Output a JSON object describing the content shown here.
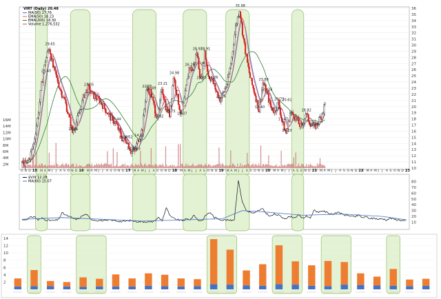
{
  "chart_data": [
    {
      "type": "candlestick",
      "title": "VIRT (Daily) 20.48",
      "legend": [
        {
          "label": "MA(50) 17.76",
          "color": "#4472c4"
        },
        {
          "label": "EMA(50) 18.23",
          "color": "#e06666"
        },
        {
          "label": "EMA(200) 18.30",
          "color": "#2e7d32"
        },
        {
          "label": "Volume 1,276,532",
          "color": "#c25555"
        }
      ],
      "ylim": [
        10,
        36
      ],
      "yticks": [
        10,
        11,
        12,
        13,
        14,
        15,
        16,
        17,
        18,
        19,
        20,
        21,
        22,
        23,
        24,
        25,
        26,
        27,
        28,
        29,
        30,
        31,
        32,
        33,
        34,
        35,
        36
      ],
      "volume_ticks": [
        "16M",
        "14M",
        "12M",
        "10M",
        "8M",
        "6M",
        "4M",
        "2M"
      ],
      "x_month_labels": [
        "O",
        "N",
        "D",
        "15",
        "F",
        "M",
        "A",
        "M",
        "J",
        "J",
        "A",
        "S",
        "O",
        "N",
        "D",
        "16",
        "F",
        "M",
        "A",
        "M",
        "J",
        "J",
        "A",
        "S",
        "O",
        "N",
        "D",
        "17",
        "F",
        "M",
        "A",
        "M",
        "J",
        "J",
        "A",
        "S",
        "O",
        "N",
        "D",
        "18",
        "F",
        "M",
        "A",
        "M",
        "J",
        "J",
        "A",
        "S",
        "O",
        "N",
        "D",
        "19",
        "F",
        "M",
        "A",
        "M",
        "J",
        "J",
        "A",
        "S",
        "O",
        "N",
        "D",
        "20",
        "F",
        "M",
        "A",
        "M",
        "J",
        "J",
        "A",
        "S",
        "O",
        "N",
        "D",
        "21",
        "F",
        "M",
        "A",
        "M",
        "J",
        "J",
        "A",
        "S",
        "O",
        "N",
        "D",
        "22",
        "F",
        "M",
        "A",
        "M",
        "J",
        "J",
        "A",
        "S",
        "O",
        "N",
        "D",
        "23"
      ],
      "shaded_month_ranges": [
        [
          4,
          6
        ],
        [
          13,
          17
        ],
        [
          29,
          34
        ],
        [
          42,
          47
        ],
        [
          53,
          58
        ],
        [
          70,
          72
        ]
      ],
      "price_path": [
        [
          0,
          11.0
        ],
        [
          1,
          10.6
        ],
        [
          2,
          11.8
        ],
        [
          3,
          14.0
        ],
        [
          4,
          18.0
        ],
        [
          5,
          23.5
        ],
        [
          6,
          27.5
        ],
        [
          7,
          29.65
        ],
        [
          8,
          26.4
        ],
        [
          9,
          24.5
        ],
        [
          10,
          22.5
        ],
        [
          11,
          21.0
        ],
        [
          12,
          18.5
        ],
        [
          13,
          15.81
        ],
        [
          14,
          17.5
        ],
        [
          15,
          19.5
        ],
        [
          16,
          22.0
        ],
        [
          17,
          23.05
        ],
        [
          18,
          22.0
        ],
        [
          19,
          21.5
        ],
        [
          20,
          21.0
        ],
        [
          21,
          20.0
        ],
        [
          22,
          19.0
        ],
        [
          23,
          18.0
        ],
        [
          24,
          17.44
        ],
        [
          25,
          16.0
        ],
        [
          26,
          14.47
        ],
        [
          27,
          14.52
        ],
        [
          28,
          12.76
        ],
        [
          29,
          12.63
        ],
        [
          30,
          14.81
        ],
        [
          31,
          16.5
        ],
        [
          32,
          22.75
        ],
        [
          33,
          22.49
        ],
        [
          34,
          20.0
        ],
        [
          35,
          17.92
        ],
        [
          36,
          23.21
        ],
        [
          37,
          20.0
        ],
        [
          38,
          18.73
        ],
        [
          39,
          24.98
        ],
        [
          40,
          21.5
        ],
        [
          41,
          18.37
        ],
        [
          42,
          22.0
        ],
        [
          43,
          26.28
        ],
        [
          44,
          26.0
        ],
        [
          45,
          28.91
        ],
        [
          46,
          24.2
        ],
        [
          47,
          28.91
        ],
        [
          48,
          25.0
        ],
        [
          49,
          24.26
        ],
        [
          50,
          22.5
        ],
        [
          51,
          21.16
        ],
        [
          52,
          22.5
        ],
        [
          53,
          24.2
        ],
        [
          54,
          28.0
        ],
        [
          55,
          33.0
        ],
        [
          56,
          35.88
        ],
        [
          57,
          31.0
        ],
        [
          58,
          27.0
        ],
        [
          59,
          24.0
        ],
        [
          60,
          22.0
        ],
        [
          61,
          19.4
        ],
        [
          62,
          23.88
        ],
        [
          63,
          22.26
        ],
        [
          64,
          20.0
        ],
        [
          65,
          19.16
        ],
        [
          66,
          20.73
        ],
        [
          67,
          17.47
        ],
        [
          68,
          15.63
        ],
        [
          69,
          19.0
        ],
        [
          70,
          18.61
        ],
        [
          71,
          17.5
        ],
        [
          72,
          16.5
        ],
        [
          73,
          18.92
        ],
        [
          74,
          17.5
        ],
        [
          75,
          16.63
        ],
        [
          76,
          17.2
        ],
        [
          77,
          18.5
        ],
        [
          78,
          20.48
        ]
      ],
      "annotations": [
        {
          "text": "29.65",
          "month": 7,
          "value": 29.65
        },
        {
          "text": "26.40",
          "month": 6,
          "value": 26.4
        },
        {
          "text": "15.81",
          "month": 13,
          "value": 15.81
        },
        {
          "text": "23.05",
          "month": 17,
          "value": 23.05
        },
        {
          "text": "17.44",
          "month": 24,
          "value": 17.44
        },
        {
          "text": "14.47",
          "month": 26,
          "value": 14.47
        },
        {
          "text": "14.52",
          "month": 27,
          "value": 14.52
        },
        {
          "text": "12.76",
          "month": 28,
          "value": 12.76
        },
        {
          "text": "12.63",
          "month": 29,
          "value": 12.63
        },
        {
          "text": "14.81",
          "month": 30,
          "value": 14.81
        },
        {
          "text": "22.75",
          "month": 32,
          "value": 22.75
        },
        {
          "text": "22.49",
          "month": 33,
          "value": 22.49
        },
        {
          "text": "17.92",
          "month": 35,
          "value": 17.92
        },
        {
          "text": "23.21",
          "month": 36,
          "value": 23.21
        },
        {
          "text": "18.73",
          "month": 38,
          "value": 18.73
        },
        {
          "text": "24.98",
          "month": 39,
          "value": 24.98
        },
        {
          "text": "18.37",
          "month": 41,
          "value": 18.37
        },
        {
          "text": "26.28",
          "month": 43,
          "value": 26.28
        },
        {
          "text": "28.91",
          "month": 45,
          "value": 28.91
        },
        {
          "text": "28.91",
          "month": 47,
          "value": 28.91
        },
        {
          "text": "24.20",
          "month": 46,
          "value": 24.2
        },
        {
          "text": "24.26",
          "month": 49,
          "value": 24.26
        },
        {
          "text": "21.16",
          "month": 51,
          "value": 21.16
        },
        {
          "text": "35.88",
          "month": 56,
          "value": 35.88
        },
        {
          "text": "19.40",
          "month": 61,
          "value": 19.4
        },
        {
          "text": "23.88",
          "month": 62,
          "value": 23.88
        },
        {
          "text": "22.26",
          "month": 63,
          "value": 22.26
        },
        {
          "text": "19.16",
          "month": 65,
          "value": 19.16
        },
        {
          "text": "20.73",
          "month": 66,
          "value": 20.73
        },
        {
          "text": "20.61",
          "month": 68,
          "value": 20.61
        },
        {
          "text": "17.47",
          "month": 67,
          "value": 17.47
        },
        {
          "text": "15.63",
          "month": 68,
          "value": 15.63
        },
        {
          "text": "18.92",
          "month": 73,
          "value": 18.92
        },
        {
          "text": "16.63",
          "month": 75,
          "value": 16.63
        }
      ]
    },
    {
      "type": "line",
      "title": "$VIX 12.28",
      "legend": [
        {
          "label": "$VIX 12.28",
          "color": "#111111"
        },
        {
          "label": "MA(60) 15.07",
          "color": "#4472c4"
        }
      ],
      "ylim": [
        0,
        90
      ],
      "yticks": [
        10,
        20,
        30,
        40,
        50,
        60,
        70,
        80
      ],
      "vix_path": [
        [
          0,
          14
        ],
        [
          1,
          15
        ],
        [
          2,
          18
        ],
        [
          3,
          20
        ],
        [
          4,
          14
        ],
        [
          5,
          17
        ],
        [
          6,
          14
        ],
        [
          7,
          13
        ],
        [
          8,
          13
        ],
        [
          9,
          14
        ],
        [
          10,
          26
        ],
        [
          11,
          22
        ],
        [
          12,
          19
        ],
        [
          13,
          16
        ],
        [
          14,
          15
        ],
        [
          15,
          21
        ],
        [
          16,
          24
        ],
        [
          17,
          16
        ],
        [
          18,
          14
        ],
        [
          19,
          13
        ],
        [
          20,
          13
        ],
        [
          21,
          12
        ],
        [
          22,
          14
        ],
        [
          23,
          13
        ],
        [
          24,
          12
        ],
        [
          25,
          11
        ],
        [
          26,
          12
        ],
        [
          27,
          13
        ],
        [
          28,
          12
        ],
        [
          29,
          11
        ],
        [
          30,
          11
        ],
        [
          31,
          11
        ],
        [
          32,
          10
        ],
        [
          33,
          12
        ],
        [
          34,
          18
        ],
        [
          35,
          13
        ],
        [
          36,
          35
        ],
        [
          37,
          20
        ],
        [
          38,
          16
        ],
        [
          39,
          14
        ],
        [
          40,
          13
        ],
        [
          41,
          15
        ],
        [
          42,
          15
        ],
        [
          43,
          22
        ],
        [
          44,
          13
        ],
        [
          45,
          13
        ],
        [
          46,
          23
        ],
        [
          47,
          27
        ],
        [
          48,
          18
        ],
        [
          49,
          16
        ],
        [
          50,
          14
        ],
        [
          51,
          14
        ],
        [
          52,
          13
        ],
        [
          53,
          15
        ],
        [
          54,
          82
        ],
        [
          55,
          45
        ],
        [
          56,
          30
        ],
        [
          57,
          27
        ],
        [
          58,
          25
        ],
        [
          59,
          30
        ],
        [
          60,
          33
        ],
        [
          61,
          25
        ],
        [
          62,
          20
        ],
        [
          63,
          24
        ],
        [
          64,
          22
        ],
        [
          65,
          18
        ],
        [
          66,
          17
        ],
        [
          67,
          20
        ],
        [
          68,
          18
        ],
        [
          69,
          22
        ],
        [
          70,
          17
        ],
        [
          71,
          20
        ],
        [
          72,
          18
        ],
        [
          73,
          32
        ],
        [
          74,
          26
        ],
        [
          75,
          30
        ],
        [
          76,
          27
        ],
        [
          77,
          25
        ],
        [
          78,
          24
        ],
        [
          79,
          28
        ],
        [
          80,
          23
        ],
        [
          81,
          22
        ],
        [
          82,
          21
        ],
        [
          83,
          19
        ],
        [
          84,
          22
        ],
        [
          85,
          18
        ],
        [
          86,
          19
        ],
        [
          87,
          16
        ],
        [
          88,
          17
        ],
        [
          89,
          15
        ],
        [
          90,
          16
        ],
        [
          91,
          14
        ],
        [
          92,
          17
        ],
        [
          93,
          15
        ],
        [
          94,
          14
        ],
        [
          95,
          13
        ],
        [
          96,
          12
        ]
      ],
      "ma_path": [
        [
          0,
          15
        ],
        [
          10,
          18
        ],
        [
          20,
          15
        ],
        [
          30,
          12
        ],
        [
          40,
          14
        ],
        [
          50,
          16
        ],
        [
          55,
          30
        ],
        [
          60,
          28
        ],
        [
          70,
          22
        ],
        [
          80,
          24
        ],
        [
          90,
          20
        ],
        [
          96,
          14
        ]
      ]
    },
    {
      "type": "bar",
      "stacked": true,
      "series": [
        {
          "name": "",
          "color": "#4472c4",
          "values": [
            0.8,
            0.9,
            0.9,
            0.8,
            0.7,
            0.8,
            0.8,
            0.8,
            1.0,
            0.9,
            0.8,
            0.9,
            1.4,
            1.3,
            1.1,
            1.0,
            1.4,
            1.3,
            1.0,
            0.9,
            1.3,
            1.2,
            1.1,
            1.0,
            0.9,
            1.0
          ]
        },
        {
          "name": "",
          "color": "#ed7d31",
          "values": [
            2.2,
            4.4,
            1.4,
            1.2,
            2.6,
            2.1,
            3.3,
            2.2,
            3.4,
            3.1,
            2.2,
            1.9,
            12.4,
            9.6,
            4.1,
            5.9,
            10.7,
            6.4,
            5.6,
            6.9,
            6.2,
            3.2,
            2.4,
            4.6,
            1.8,
            1.9
          ]
        }
      ],
      "categories": [
        "",
        "",
        "",
        "",
        "",
        "",
        "",
        "",
        "",
        "",
        "",
        "",
        "",
        "",
        "",
        "",
        "",
        "",
        "",
        "",
        "",
        "",
        "",
        "",
        "",
        ""
      ],
      "ylim": [
        0,
        14
      ],
      "yticks": [
        0,
        2,
        4,
        6,
        8,
        10,
        12,
        14
      ],
      "shaded_bar_ranges": [
        [
          1,
          1
        ],
        [
          4,
          5
        ],
        [
          12,
          13
        ],
        [
          16,
          17
        ],
        [
          19,
          20
        ],
        [
          23,
          23
        ]
      ]
    }
  ]
}
